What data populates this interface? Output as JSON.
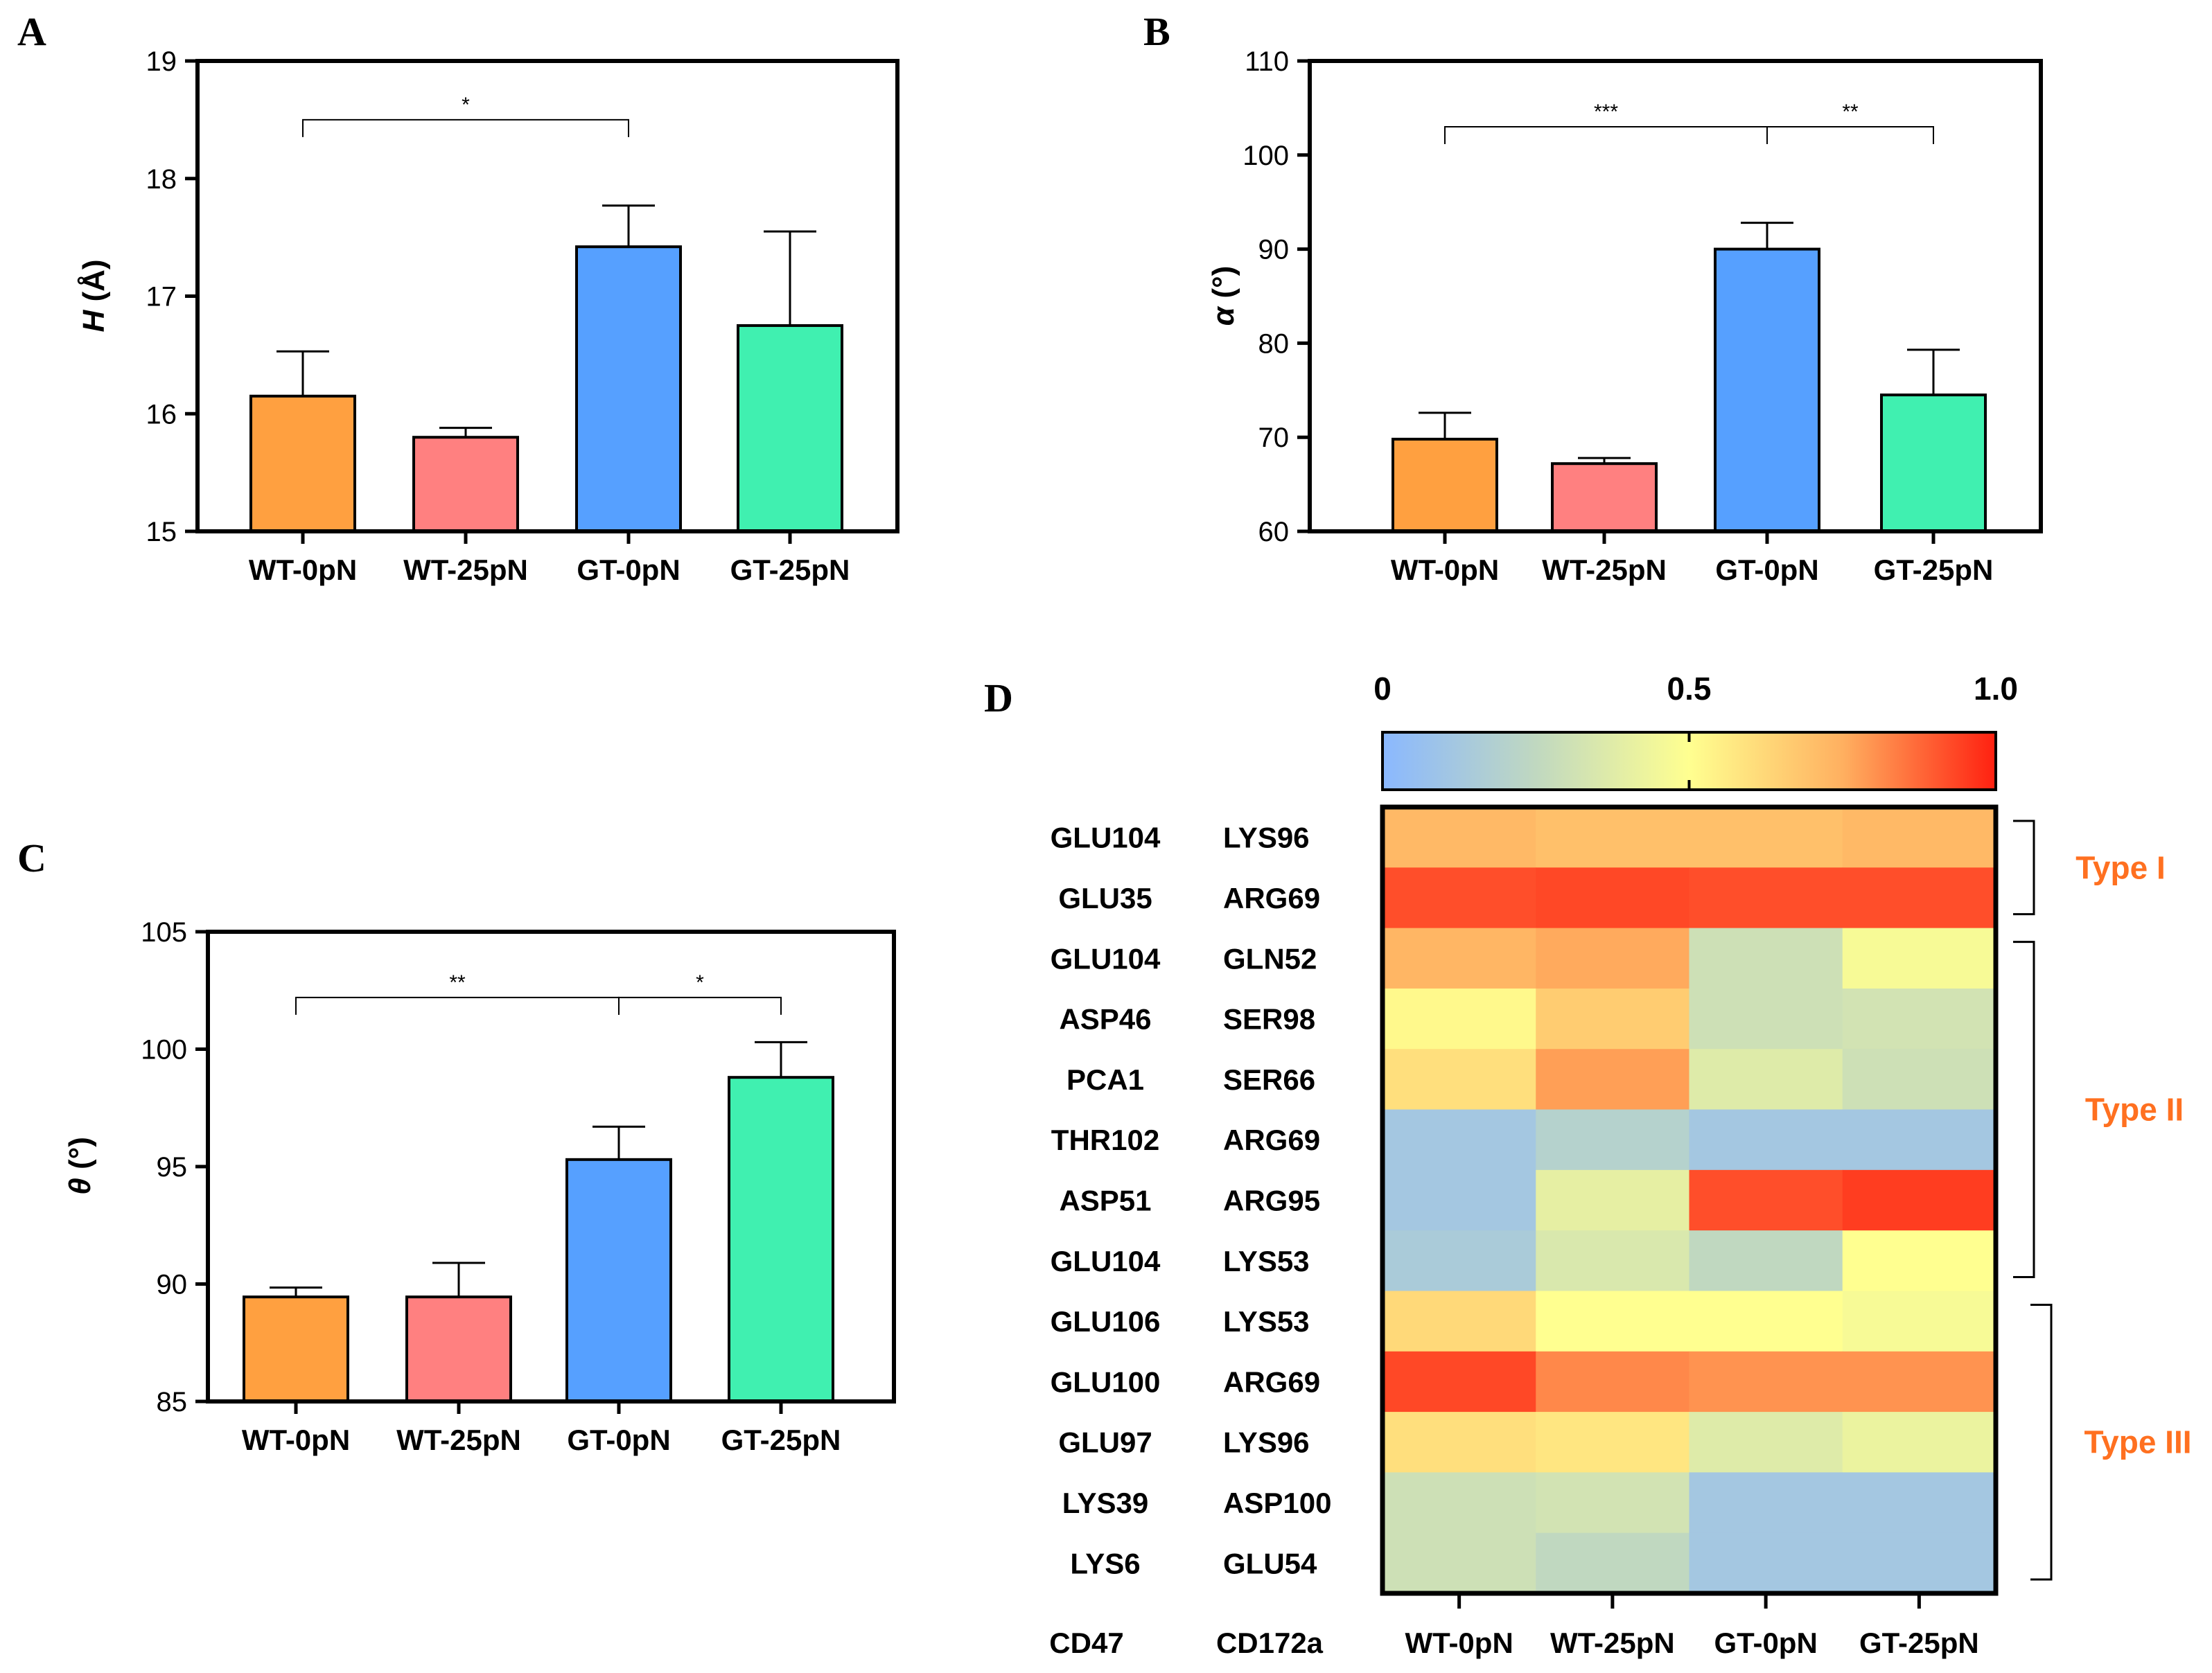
{
  "panels": {
    "A": "A",
    "B": "B",
    "C": "C",
    "D": "D"
  },
  "bar_colors": [
    "#FFA040",
    "#FF8080",
    "#56A0FF",
    "#40F0B0"
  ],
  "chart_data": [
    {
      "id": "A",
      "type": "bar",
      "categories": [
        "WT-0pN",
        "WT-25pN",
        "GT-0pN",
        "GT-25pN"
      ],
      "values": [
        16.15,
        15.8,
        17.42,
        16.75
      ],
      "errors": [
        0.38,
        0.08,
        0.35,
        0.8
      ],
      "ylabel_var": "H",
      "ylabel_unit": " (Å)",
      "ylim": [
        15,
        19
      ],
      "yticks": [
        "15",
        "16",
        "17",
        "18",
        "19"
      ],
      "significance": [
        {
          "from": 0,
          "to": 2,
          "label": "*",
          "y": 18.5
        }
      ]
    },
    {
      "id": "B",
      "type": "bar",
      "categories": [
        "WT-0pN",
        "WT-25pN",
        "GT-0pN",
        "GT-25pN"
      ],
      "values": [
        69.8,
        67.2,
        90.0,
        74.5
      ],
      "errors": [
        2.8,
        0.6,
        2.8,
        4.8
      ],
      "ylabel_var": "α",
      "ylabel_unit": " (°)",
      "ylim": [
        60,
        110
      ],
      "yticks": [
        "60",
        "70",
        "80",
        "90",
        "100",
        "110"
      ],
      "significance": [
        {
          "from": 0,
          "to": 2,
          "label": "***",
          "y": 103
        },
        {
          "from": 2,
          "to": 3,
          "label": "**",
          "y": 103
        }
      ]
    },
    {
      "id": "C",
      "type": "bar",
      "categories": [
        "WT-0pN",
        "WT-25pN",
        "GT-0pN",
        "GT-25pN"
      ],
      "values": [
        89.45,
        89.45,
        95.3,
        98.8
      ],
      "errors": [
        0.4,
        1.45,
        1.4,
        1.5
      ],
      "ylabel_var": "θ",
      "ylabel_unit": " (°)",
      "ylim": [
        85,
        105
      ],
      "yticks": [
        "85",
        "90",
        "95",
        "100",
        "105"
      ],
      "significance": [
        {
          "from": 0,
          "to": 2,
          "label": "**",
          "y": 102.2
        },
        {
          "from": 2,
          "to": 3,
          "label": "*",
          "y": 102.2
        }
      ]
    },
    {
      "id": "D",
      "type": "heatmap",
      "col_header_left": "CD47",
      "col_header_right": "CD172a",
      "x": [
        "WT-0pN",
        "WT-25pN",
        "GT-0pN",
        "GT-25pN"
      ],
      "rows": [
        {
          "cd47": "GLU104",
          "cd172a": "LYS96",
          "values": [
            0.72,
            0.7,
            0.7,
            0.72
          ]
        },
        {
          "cd47": "GLU35",
          "cd172a": "ARG69",
          "values": [
            0.92,
            0.93,
            0.92,
            0.92
          ]
        },
        {
          "cd47": "GLU104",
          "cd172a": "GLN52",
          "values": [
            0.73,
            0.76,
            0.3,
            0.47
          ]
        },
        {
          "cd47": "ASP46",
          "cd172a": "SER98",
          "values": [
            0.52,
            0.66,
            0.3,
            0.32
          ]
        },
        {
          "cd47": "PCA1",
          "cd172a": "SER66",
          "values": [
            0.6,
            0.78,
            0.37,
            0.3
          ]
        },
        {
          "cd47": "THR102",
          "cd172a": "ARG69",
          "values": [
            0.12,
            0.2,
            0.12,
            0.12
          ]
        },
        {
          "cd47": "ASP51",
          "cd172a": "ARG95",
          "values": [
            0.12,
            0.4,
            0.92,
            0.95
          ]
        },
        {
          "cd47": "GLU104",
          "cd172a": "LYS53",
          "values": [
            0.15,
            0.35,
            0.25,
            0.5
          ]
        },
        {
          "cd47": "GLU106",
          "cd172a": "LYS53",
          "values": [
            0.62,
            0.5,
            0.5,
            0.47
          ]
        },
        {
          "cd47": "GLU100",
          "cd172a": "ARG69",
          "values": [
            0.93,
            0.82,
            0.8,
            0.8
          ]
        },
        {
          "cd47": "GLU97",
          "cd172a": "LYS96",
          "values": [
            0.6,
            0.58,
            0.37,
            0.42
          ]
        },
        {
          "cd47": "LYS39",
          "cd172a": "ASP100",
          "values": [
            0.3,
            0.32,
            0.12,
            0.12
          ]
        },
        {
          "cd47": "LYS6",
          "cd172a": "GLU54",
          "values": [
            0.3,
            0.25,
            0.12,
            0.12
          ]
        }
      ],
      "colorbar": {
        "ticks": [
          "0",
          "0.5",
          "1.0"
        ],
        "stops": [
          "#8AB8FF",
          "#C0D8C0",
          "#FFFF90",
          "#FFB060",
          "#FF2010"
        ]
      },
      "groups": [
        {
          "label": "Type I",
          "row_start": 0,
          "row_end": 1
        },
        {
          "label": "Type II",
          "row_start": 2,
          "row_end": 7
        },
        {
          "label": "Type III",
          "row_start": 8,
          "row_end": 12
        }
      ],
      "group_color": "#FF7020"
    }
  ]
}
